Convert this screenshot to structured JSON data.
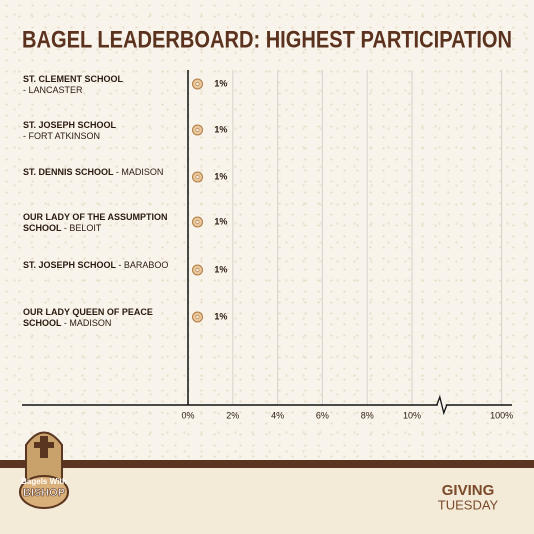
{
  "chart_data": {
    "type": "bar",
    "orientation": "horizontal",
    "title": "BAGEL LEADERBOARD: HIGHEST PARTICIPATION",
    "categories": [
      "ST. CLEMENT SCHOOL",
      "ST. JOSEPH SCHOOL",
      "ST. DENNIS SCHOOL",
      "OUR LADY OF THE ASSUMPTION SCHOOL",
      "ST. JOSEPH SCHOOL",
      "OUR LADY QUEEN OF PEACE SCHOOL"
    ],
    "locations": [
      "- LANCASTER",
      "- FORT ATKINSON",
      "- MADISON",
      "- BELOIT",
      "- BARABOO",
      "- MADISON"
    ],
    "values": [
      1,
      1,
      1,
      1,
      1,
      1
    ],
    "value_labels": [
      "1%",
      "1%",
      "1%",
      "1%",
      "1%",
      "1%"
    ],
    "color": "#e9c79a",
    "xlim": [
      0,
      100
    ],
    "xticks": [
      {
        "value": 0,
        "label": "0%"
      },
      {
        "value": 2,
        "label": "2%"
      },
      {
        "value": 4,
        "label": "4%"
      },
      {
        "value": 6,
        "label": "6%"
      },
      {
        "value": 8,
        "label": "8%"
      },
      {
        "value": 10,
        "label": "10%"
      },
      {
        "value": 100,
        "label": "100%"
      }
    ],
    "axis_break": true,
    "grid": true
  },
  "logos": {
    "left": [
      "Bagels With",
      "BISHOP"
    ],
    "right": [
      "GIVING",
      "TUESDAY"
    ]
  }
}
